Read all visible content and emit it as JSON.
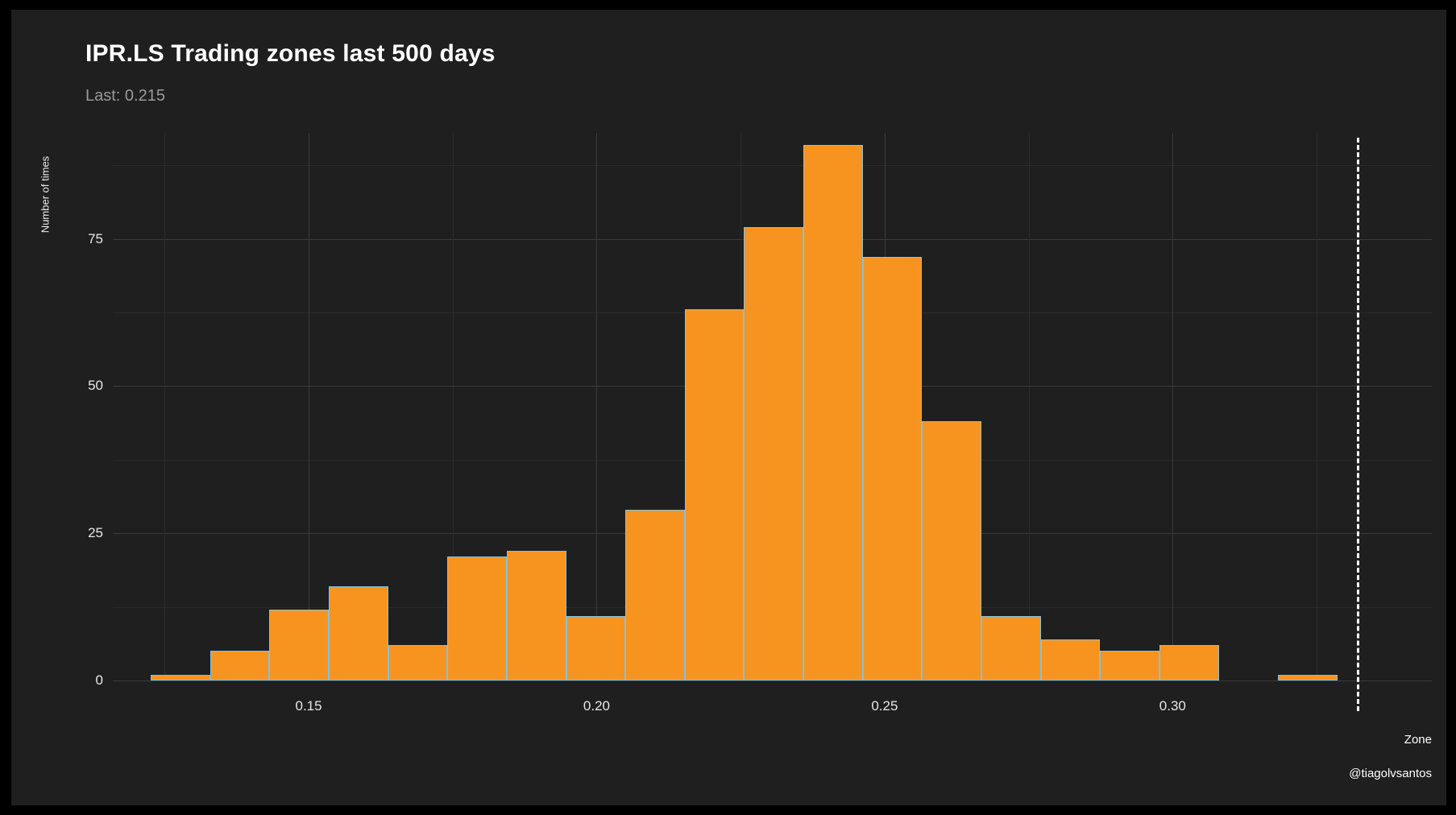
{
  "title": "IPR.LS Trading zones last 500 days",
  "subtitle": "Last: 0.215",
  "watermark": "@tiagolvsantos",
  "colors": {
    "background": "#1f1f1f",
    "frame": "#000000",
    "bar_fill": "#f79420",
    "bar_stroke": "#85c1dc",
    "grid_major": "#3a3a3a",
    "grid_minor": "#2b2b2b",
    "title_text": "#ffffff",
    "subtitle_text": "#9a9a9a",
    "tick_text": "#e8e8e8",
    "dashed_line": "#ffffff"
  },
  "chart_data": {
    "type": "bar",
    "subtype": "histogram",
    "title": "IPR.LS Trading zones last 500 days",
    "subtitle": "Last: 0.215",
    "xlabel": "Zone",
    "ylabel": "Number of times",
    "xlim": [
      0.116,
      0.345
    ],
    "ylim": [
      0,
      93
    ],
    "grid": true,
    "legend": false,
    "bins": {
      "start": 0.1226,
      "width": 0.0103,
      "counts": [
        1,
        5,
        12,
        16,
        6,
        21,
        22,
        11,
        29,
        63,
        77,
        91,
        72,
        44,
        11,
        7,
        5,
        6,
        0,
        1
      ]
    },
    "total_observations": 500,
    "x_ticks": [
      0.15,
      0.2,
      0.25,
      0.3
    ],
    "x_tick_labels": [
      "0.15",
      "0.20",
      "0.25",
      "0.30"
    ],
    "x_minor_ticks": [
      0.125,
      0.175,
      0.225,
      0.275,
      0.325
    ],
    "y_ticks": [
      0,
      25,
      50,
      75
    ],
    "y_tick_labels": [
      "0",
      "25",
      "50",
      "75"
    ],
    "y_minor_ticks": [
      12.5,
      37.5,
      62.5,
      87.5
    ],
    "vline_x": 0.332
  }
}
